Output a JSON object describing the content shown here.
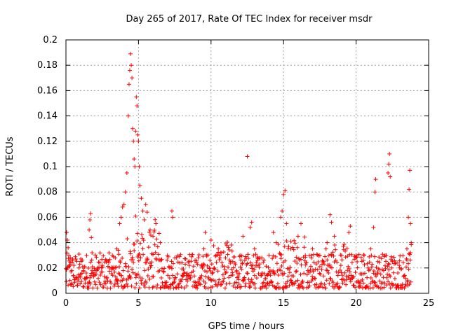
{
  "chart_data": {
    "type": "scatter",
    "title": "Day 265 of 2017, Rate Of TEC Index for receiver msdr",
    "xlabel": "GPS time / hours",
    "ylabel": "ROTI / TECUs",
    "xlim": [
      0,
      25
    ],
    "ylim": [
      0,
      0.2
    ],
    "xticks": [
      0,
      5,
      10,
      15,
      20,
      25
    ],
    "yticks": [
      0,
      0.02,
      0.04,
      0.06,
      0.08,
      0.1,
      0.12,
      0.14,
      0.16,
      0.18,
      0.2
    ],
    "grid": true,
    "marker": "+",
    "marker_color": "#ff0000",
    "series": [
      {
        "points": [
          [
            0.05,
            0.048
          ],
          [
            0.1,
            0.042
          ],
          [
            0.15,
            0.036
          ],
          [
            0.2,
            0.03
          ],
          [
            0.25,
            0.022
          ],
          [
            0.3,
            0.028
          ],
          [
            0.4,
            0.018
          ],
          [
            0.5,
            0.014
          ],
          [
            0.7,
            0.012
          ],
          [
            0.9,
            0.02
          ],
          [
            1.0,
            0.015
          ],
          [
            1.2,
            0.018
          ],
          [
            1.4,
            0.016
          ],
          [
            1.6,
            0.05
          ],
          [
            1.65,
            0.058
          ],
          [
            1.7,
            0.063
          ],
          [
            1.75,
            0.044
          ],
          [
            1.8,
            0.032
          ],
          [
            2.0,
            0.018
          ],
          [
            2.2,
            0.02
          ],
          [
            2.5,
            0.022
          ],
          [
            2.8,
            0.026
          ],
          [
            3.0,
            0.02
          ],
          [
            3.2,
            0.03
          ],
          [
            3.4,
            0.028
          ],
          [
            3.5,
            0.035
          ],
          [
            3.6,
            0.034
          ],
          [
            3.7,
            0.055
          ],
          [
            3.8,
            0.06
          ],
          [
            3.9,
            0.068
          ],
          [
            4.0,
            0.07
          ],
          [
            4.1,
            0.08
          ],
          [
            4.2,
            0.095
          ],
          [
            4.3,
            0.14
          ],
          [
            4.35,
            0.165
          ],
          [
            4.4,
            0.176
          ],
          [
            4.45,
            0.189
          ],
          [
            4.5,
            0.18
          ],
          [
            4.55,
            0.17
          ],
          [
            4.6,
            0.13
          ],
          [
            4.65,
            0.12
          ],
          [
            4.7,
            0.106
          ],
          [
            4.75,
            0.1
          ],
          [
            4.8,
            0.128
          ],
          [
            4.85,
            0.155
          ],
          [
            4.9,
            0.148
          ],
          [
            4.95,
            0.125
          ],
          [
            5.0,
            0.12
          ],
          [
            5.05,
            0.1
          ],
          [
            5.1,
            0.085
          ],
          [
            5.2,
            0.075
          ],
          [
            5.3,
            0.065
          ],
          [
            5.4,
            0.058
          ],
          [
            5.5,
            0.07
          ],
          [
            5.6,
            0.064
          ],
          [
            5.8,
            0.05
          ],
          [
            6.0,
            0.045
          ],
          [
            6.2,
            0.055
          ],
          [
            6.5,
            0.04
          ],
          [
            7.0,
            0.03
          ],
          [
            7.3,
            0.065
          ],
          [
            7.35,
            0.06
          ],
          [
            7.5,
            0.028
          ],
          [
            8.0,
            0.024
          ],
          [
            8.5,
            0.022
          ],
          [
            9.0,
            0.024
          ],
          [
            9.5,
            0.035
          ],
          [
            9.6,
            0.048
          ],
          [
            10.0,
            0.042
          ],
          [
            10.5,
            0.035
          ],
          [
            11.0,
            0.028
          ],
          [
            11.5,
            0.025
          ],
          [
            12.0,
            0.03
          ],
          [
            12.2,
            0.045
          ],
          [
            12.5,
            0.108
          ],
          [
            12.7,
            0.052
          ],
          [
            12.8,
            0.056
          ],
          [
            13.0,
            0.035
          ],
          [
            13.5,
            0.028
          ],
          [
            14.0,
            0.03
          ],
          [
            14.3,
            0.048
          ],
          [
            14.5,
            0.04
          ],
          [
            14.8,
            0.06
          ],
          [
            14.9,
            0.065
          ],
          [
            15.0,
            0.078
          ],
          [
            15.1,
            0.081
          ],
          [
            15.2,
            0.055
          ],
          [
            15.5,
            0.035
          ],
          [
            16.0,
            0.045
          ],
          [
            16.2,
            0.055
          ],
          [
            16.5,
            0.03
          ],
          [
            17.0,
            0.035
          ],
          [
            17.5,
            0.03
          ],
          [
            18.0,
            0.04
          ],
          [
            18.2,
            0.062
          ],
          [
            18.3,
            0.056
          ],
          [
            18.5,
            0.045
          ],
          [
            19.0,
            0.03
          ],
          [
            19.5,
            0.048
          ],
          [
            19.6,
            0.053
          ],
          [
            20.0,
            0.03
          ],
          [
            20.5,
            0.026
          ],
          [
            21.0,
            0.035
          ],
          [
            21.2,
            0.052
          ],
          [
            21.3,
            0.08
          ],
          [
            21.35,
            0.09
          ],
          [
            21.5,
            0.025
          ],
          [
            22.0,
            0.03
          ],
          [
            22.2,
            0.095
          ],
          [
            22.25,
            0.102
          ],
          [
            22.3,
            0.11
          ],
          [
            22.35,
            0.092
          ],
          [
            22.5,
            0.025
          ],
          [
            23.0,
            0.02
          ],
          [
            23.5,
            0.035
          ],
          [
            23.6,
            0.06
          ],
          [
            23.65,
            0.082
          ],
          [
            23.7,
            0.097
          ],
          [
            23.75,
            0.055
          ],
          [
            23.8,
            0.04
          ]
        ]
      }
    ],
    "band": {
      "x_step": 0.025,
      "x_max": 23.8,
      "y_range": [
        0.004,
        0.032
      ],
      "burst_regions": [
        [
          4.2,
          6.5,
          0.065
        ],
        [
          9.7,
          11.5,
          0.045
        ],
        [
          14.5,
          16.5,
          0.05
        ],
        [
          17.5,
          19.5,
          0.045
        ],
        [
          23.0,
          23.8,
          0.04
        ]
      ]
    }
  }
}
